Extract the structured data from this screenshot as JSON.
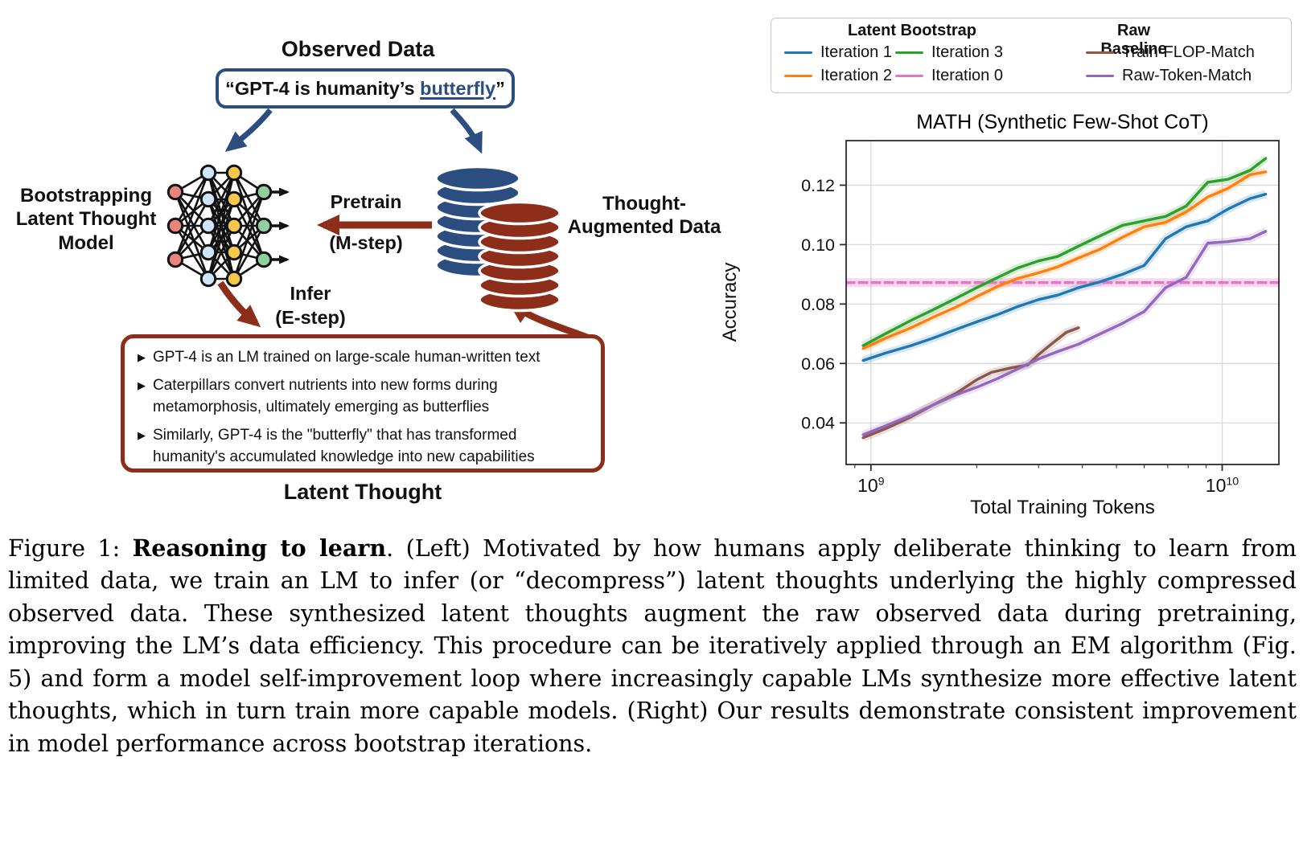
{
  "diagram": {
    "observed_data_label": "Observed Data",
    "quote_prefix": "“GPT-4 is humanity’s ",
    "quote_highlight": "butterfly",
    "quote_suffix": "”",
    "model_label": "Bootstrapping\nLatent Thought\nModel",
    "pretrain_label": "Pretrain",
    "m_step_label": "(M-step)",
    "infer_label": "Infer",
    "e_step_label": "(E-step)",
    "thought_augmented_label": "Thought-\nAugmented Data",
    "latent_thought_label": "Latent Thought",
    "bullet_glyph": "▶",
    "bullets": [
      "GPT-4 is an LM trained on large-scale human-written text",
      "Caterpillars convert nutrients into new forms during metamorphosis, ultimately emerging as butterflies",
      "Similarly, GPT-4 is the \"butterfly\" that has transformed humanity's accumulated knowledge into new capabilities"
    ],
    "colors": {
      "blue": "#2b4d80",
      "red": "#8d2e1a",
      "node_input": "#e8847c",
      "node_hidden1": "#cde5f6",
      "node_hidden2": "#f3c84b",
      "node_output": "#8fd19e",
      "edge": "#111111"
    }
  },
  "legend": {
    "groups": [
      {
        "title": "Latent Bootstrap",
        "entries": [
          {
            "label": "Iteration 1",
            "color": "#1f77b4"
          },
          {
            "label": "Iteration 2",
            "color": "#ff7f0e"
          },
          {
            "label": "Iteration 3",
            "color": "#2ca02c"
          },
          {
            "label": "Iteration 0",
            "color": "#e377c2"
          }
        ]
      },
      {
        "title": "Raw Baseline",
        "entries": [
          {
            "label": "Train-FLOP-Match",
            "color": "#8c564b"
          },
          {
            "label": "Raw-Token-Match",
            "color": "#9467bd"
          }
        ]
      }
    ]
  },
  "chart_data": {
    "type": "line",
    "title": "MATH (Synthetic Few-Shot CoT)",
    "xlabel": "Total Training Tokens",
    "ylabel": "Accuracy",
    "x_scale": "log",
    "xlim": [
      850000000.0,
      14500000000.0
    ],
    "ylim": [
      0.026,
      0.135
    ],
    "y_ticks": [
      0.04,
      0.06,
      0.08,
      0.1,
      0.12
    ],
    "x_ticks": [
      {
        "value": 1000000000.0,
        "exp": "9"
      },
      {
        "value": 10000000000.0,
        "exp": "10"
      }
    ],
    "grid": true,
    "legend_position": "above",
    "series": [
      {
        "name": "Iteration 0",
        "color": "#e377c2",
        "dash": true,
        "x": [
          850000000.0,
          14500000000.0
        ],
        "y": [
          0.0872,
          0.0872
        ]
      },
      {
        "name": "Train-FLOP-Match",
        "color": "#8c564b",
        "x": [
          950000000.0,
          1100000000.0,
          1300000000.0,
          1500000000.0,
          1750000000.0,
          2000000000.0,
          2200000000.0,
          2500000000.0,
          2800000000.0,
          3000000000.0,
          3300000000.0,
          3600000000.0,
          3900000000.0
        ],
        "y": [
          0.035,
          0.038,
          0.042,
          0.046,
          0.05,
          0.0545,
          0.057,
          0.0585,
          0.0595,
          0.063,
          0.067,
          0.0705,
          0.072
        ]
      },
      {
        "name": "Raw-Token-Match",
        "color": "#9467bd",
        "x": [
          950000000.0,
          1100000000.0,
          1300000000.0,
          1500000000.0,
          1750000000.0,
          2000000000.0,
          2300000000.0,
          2600000000.0,
          3000000000.0,
          3400000000.0,
          3900000000.0,
          4500000000.0,
          5200000000.0,
          6000000000.0,
          6900000000.0,
          7900000000.0,
          9100000000.0,
          10400000000.0,
          12000000000.0,
          13300000000.0
        ],
        "y": [
          0.036,
          0.039,
          0.0425,
          0.046,
          0.0495,
          0.052,
          0.055,
          0.058,
          0.0615,
          0.064,
          0.0665,
          0.07,
          0.0735,
          0.0775,
          0.0855,
          0.089,
          0.1005,
          0.101,
          0.102,
          0.1045
        ]
      },
      {
        "name": "Iteration 1",
        "color": "#1f77b4",
        "x": [
          950000000.0,
          1100000000.0,
          1300000000.0,
          1500000000.0,
          1750000000.0,
          2000000000.0,
          2300000000.0,
          2600000000.0,
          3000000000.0,
          3400000000.0,
          3900000000.0,
          4500000000.0,
          5200000000.0,
          6000000000.0,
          6900000000.0,
          7900000000.0,
          9100000000.0,
          10400000000.0,
          12000000000.0,
          13300000000.0
        ],
        "y": [
          0.061,
          0.0635,
          0.066,
          0.0685,
          0.0715,
          0.074,
          0.0765,
          0.079,
          0.0815,
          0.083,
          0.0855,
          0.0875,
          0.09,
          0.093,
          0.102,
          0.106,
          0.108,
          0.112,
          0.1155,
          0.117
        ]
      },
      {
        "name": "Iteration 2",
        "color": "#ff7f0e",
        "x": [
          950000000.0,
          1100000000.0,
          1300000000.0,
          1500000000.0,
          1750000000.0,
          2000000000.0,
          2300000000.0,
          2600000000.0,
          3000000000.0,
          3400000000.0,
          3900000000.0,
          4500000000.0,
          5200000000.0,
          6000000000.0,
          6900000000.0,
          7900000000.0,
          9100000000.0,
          10400000000.0,
          12000000000.0,
          13300000000.0
        ],
        "y": [
          0.065,
          0.0685,
          0.072,
          0.0755,
          0.079,
          0.0825,
          0.086,
          0.0885,
          0.0905,
          0.0925,
          0.0955,
          0.0985,
          0.1025,
          0.106,
          0.1075,
          0.111,
          0.116,
          0.119,
          0.1235,
          0.1245
        ]
      },
      {
        "name": "Iteration 3",
        "color": "#2ca02c",
        "x": [
          950000000.0,
          1100000000.0,
          1300000000.0,
          1500000000.0,
          1750000000.0,
          2000000000.0,
          2300000000.0,
          2600000000.0,
          3000000000.0,
          3400000000.0,
          3900000000.0,
          4500000000.0,
          5200000000.0,
          6000000000.0,
          6900000000.0,
          7900000000.0,
          9100000000.0,
          10400000000.0,
          12000000000.0,
          13300000000.0
        ],
        "y": [
          0.066,
          0.07,
          0.0745,
          0.078,
          0.082,
          0.0855,
          0.089,
          0.092,
          0.0945,
          0.096,
          0.0995,
          0.103,
          0.1065,
          0.108,
          0.1095,
          0.113,
          0.121,
          0.122,
          0.125,
          0.129
        ]
      }
    ]
  },
  "caption": {
    "prefix": "Figure 1: ",
    "bold": "Reasoning to learn",
    "rest": ".  (Left) Motivated by how humans apply deliberate thinking to learn from limited data, we train an LM to infer (or “decompress”) latent thoughts underlying the highly compressed observed data. These synthesized latent thoughts augment the raw observed data during pretraining, improving the LM’s data efficiency. This procedure can be iteratively applied through an EM algorithm (Fig. 5) and form a model self-improvement loop where increasingly capable LMs synthesize more effective latent thoughts, which in turn train more capable models. (Right) Our results demonstrate consistent improvement in model performance across bootstrap iterations."
  }
}
